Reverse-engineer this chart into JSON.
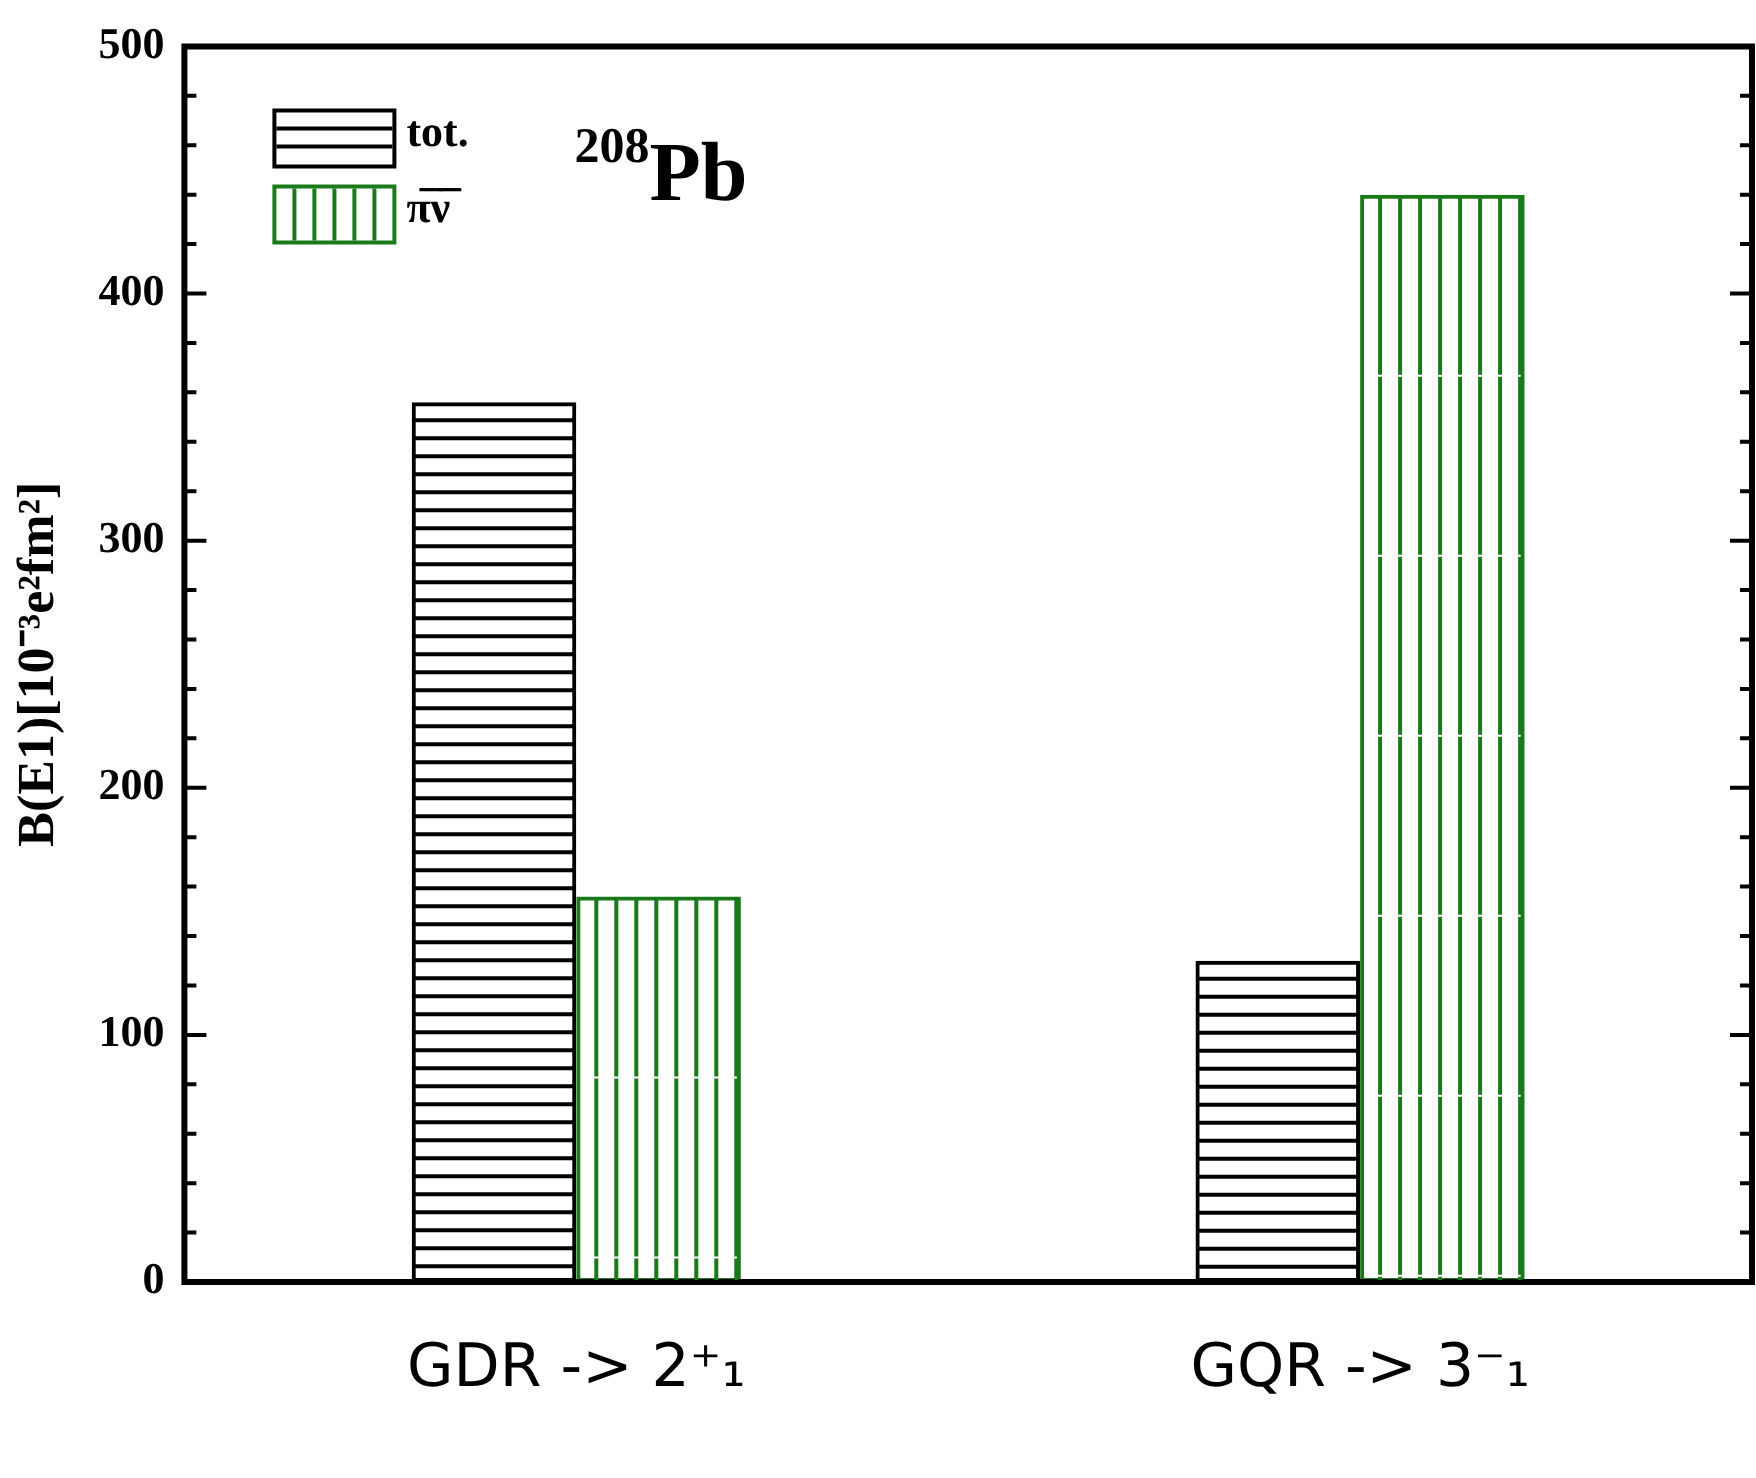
{
  "chart_data": {
    "type": "bar",
    "ylabel": "B(E1)[10⁻³e²fm²]",
    "annotations": [
      "$^{208}$Pb"
    ],
    "categories": [
      "GDR -> 2⁺₁",
      "GQR -> 3⁻₁"
    ],
    "series": [
      {
        "name": "tot.",
        "color": "#000000",
        "values": [
          356,
          130
        ]
      },
      {
        "name": "π̅ν̅",
        "color": "#1a7a1a",
        "values": [
          156,
          440
        ]
      }
    ],
    "ylim": [
      0,
      500
    ],
    "yticks": [
      0,
      {
        "value": 20,
        "label": null
      },
      {
        "value": 40,
        "label": null
      },
      {
        "value": 60,
        "label": null
      },
      {
        "value": 80,
        "label": null
      },
      100,
      {
        "value": 120,
        "label": null
      },
      {
        "value": 140,
        "label": null
      },
      {
        "value": 160,
        "label": null
      },
      {
        "value": 180,
        "label": null
      },
      200,
      {
        "value": 220,
        "label": null
      },
      {
        "value": 240,
        "label": null
      },
      {
        "value": 260,
        "label": null
      },
      {
        "value": 280,
        "label": null
      },
      300,
      {
        "value": 320,
        "label": null
      },
      {
        "value": 340,
        "label": null
      },
      {
        "value": 360,
        "label": null
      },
      {
        "value": 380,
        "label": null
      },
      400,
      {
        "value": 420,
        "label": null
      },
      {
        "value": 440,
        "label": null
      },
      {
        "value": 460,
        "label": null
      },
      {
        "value": 480,
        "label": null
      },
      500
    ],
    "grid": false,
    "legend": "top left"
  }
}
